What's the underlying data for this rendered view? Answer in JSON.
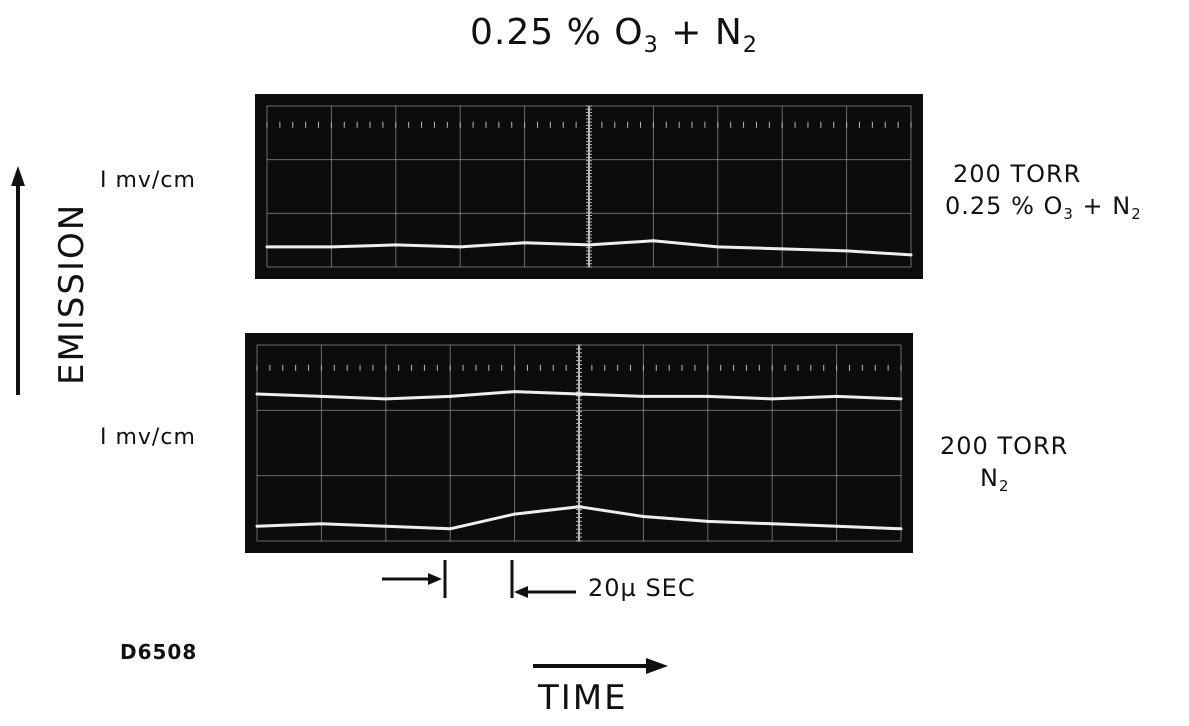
{
  "figure": {
    "title_main": "0.25 % O",
    "title_sub": "3",
    "title_mid": " + N",
    "title_sub2": "2",
    "y_axis_label": "EMISSION",
    "x_axis_label": "TIME",
    "figure_code": "D6508",
    "time_marker_label": "20µ SEC"
  },
  "traces": [
    {
      "scale_label": "I mv/cm",
      "cond_line1": "200 TORR",
      "cond_line2_a": "0.25 % O",
      "cond_line2_sub": "3",
      "cond_line2_b": " + N",
      "cond_line2_sub2": "2"
    },
    {
      "scale_label": "I mv/cm",
      "cond_line1": "200 TORR",
      "cond_line2_a": "N",
      "cond_line2_sub": "2",
      "cond_line2_b": "",
      "cond_line2_sub2": ""
    }
  ],
  "colors": {
    "screen": "#0c0c0c",
    "grid": "#b8b8b8",
    "trace": "#eeeeee",
    "ink": "#111111"
  },
  "chart_data": [
    {
      "type": "line",
      "title": "200 TORR 0.25 % O3 + N2",
      "xlabel": "TIME",
      "ylabel": "EMISSION",
      "x": [
        0,
        1,
        2,
        3,
        4,
        5,
        6,
        7,
        8,
        9,
        10
      ],
      "xlim": [
        0,
        10
      ],
      "ylim": [
        0,
        8
      ],
      "grid": true,
      "series": [
        {
          "values": [
            1.0,
            1.0,
            1.1,
            1.0,
            1.2,
            1.1,
            1.3,
            1.0,
            0.9,
            0.8,
            0.6
          ]
        }
      ]
    },
    {
      "type": "line",
      "title": "200 TORR N2",
      "xlabel": "TIME",
      "ylabel": "EMISSION",
      "x": [
        0,
        1,
        2,
        3,
        4,
        5,
        6,
        7,
        8,
        9,
        10
      ],
      "xlim": [
        0,
        10
      ],
      "ylim": [
        0,
        8
      ],
      "grid": true,
      "series": [
        {
          "values": [
            6.0,
            5.9,
            5.8,
            5.9,
            6.1,
            6.0,
            5.9,
            5.9,
            5.8,
            5.9,
            5.8
          ]
        },
        {
          "values": [
            0.6,
            0.7,
            0.6,
            0.5,
            1.1,
            1.4,
            1.0,
            0.8,
            0.7,
            0.6,
            0.5
          ]
        }
      ]
    }
  ]
}
